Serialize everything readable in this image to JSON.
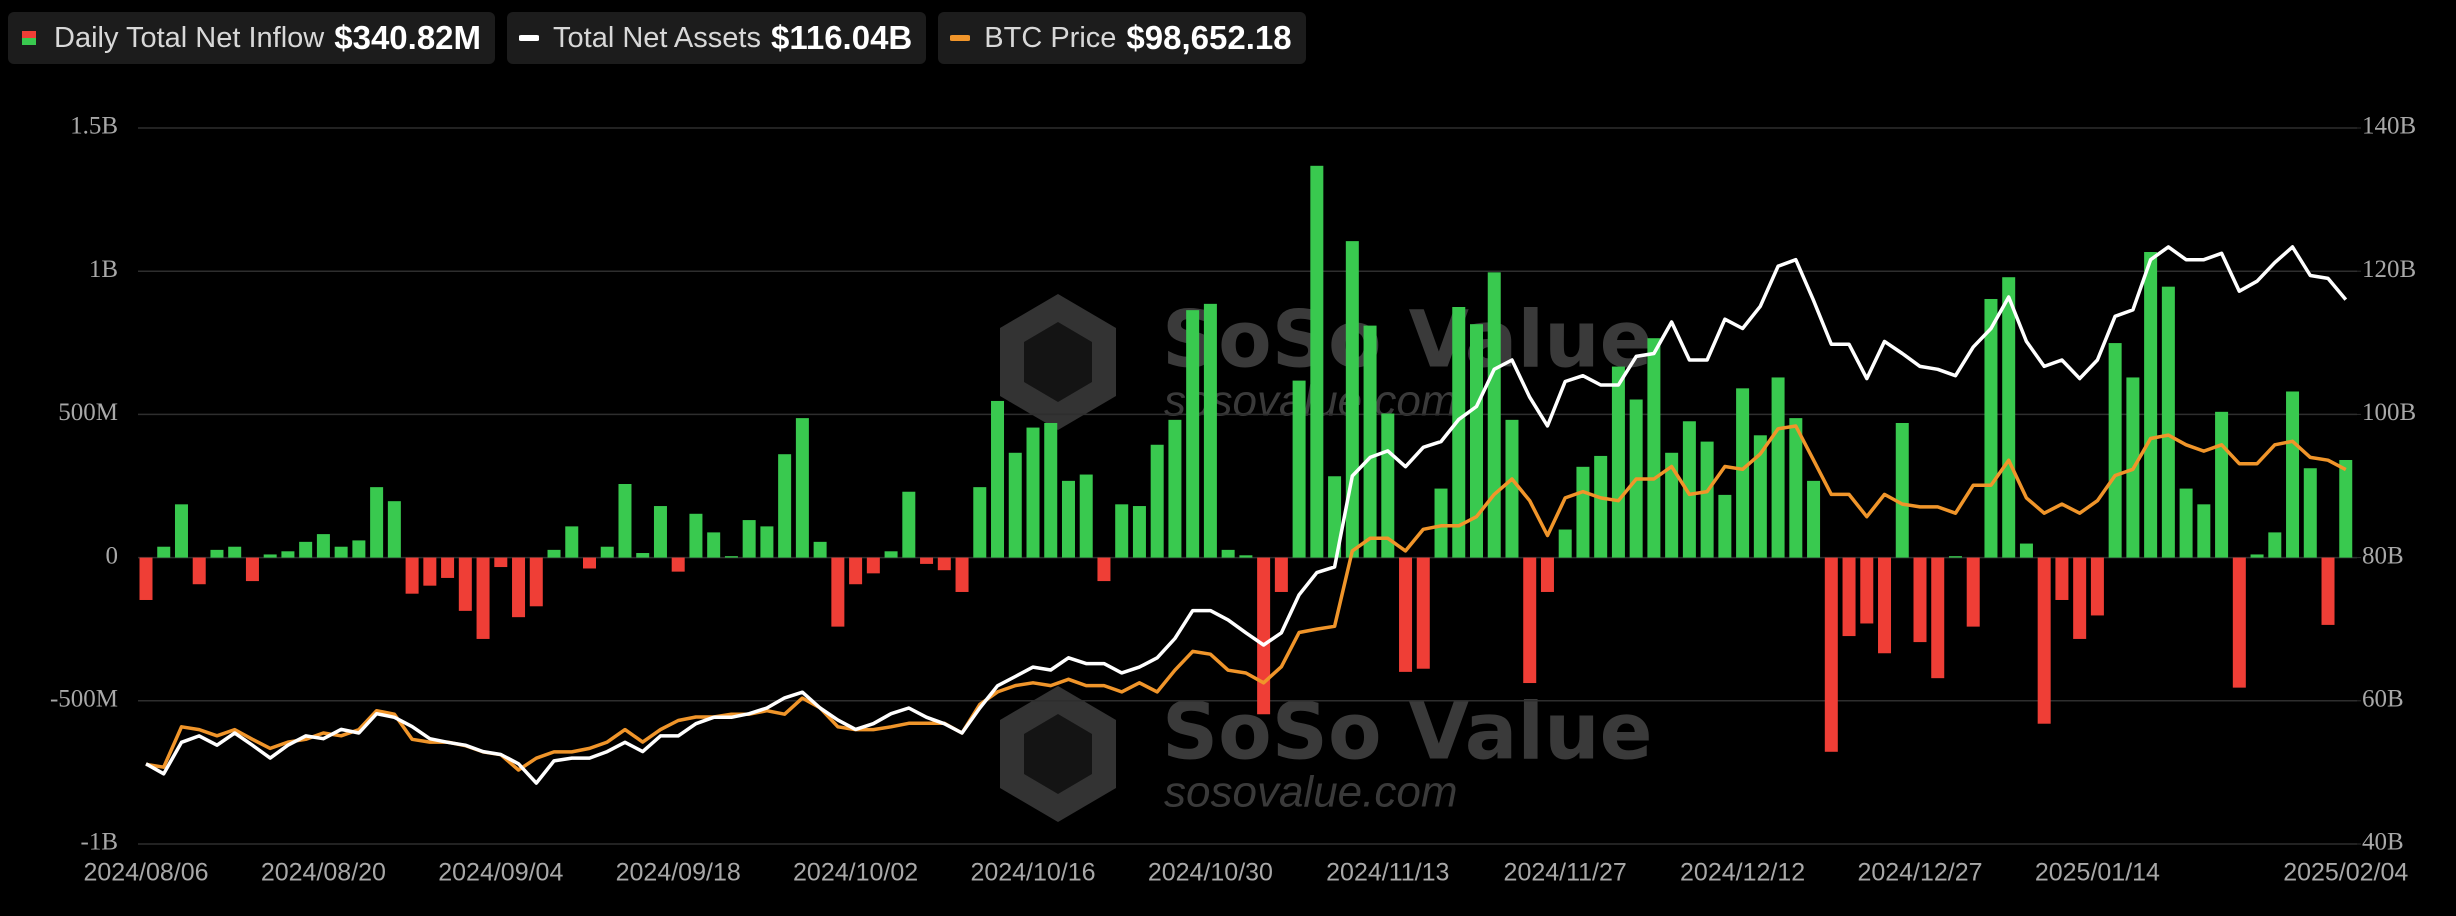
{
  "chart_data": {
    "type": "bar_line",
    "categories": [
      "2024/08/06",
      null,
      null,
      null,
      null,
      null,
      null,
      null,
      null,
      null,
      "2024/08/20",
      null,
      null,
      null,
      null,
      null,
      null,
      null,
      null,
      null,
      "2024/09/04",
      null,
      null,
      null,
      null,
      null,
      null,
      null,
      null,
      null,
      "2024/09/18",
      null,
      null,
      null,
      null,
      null,
      null,
      null,
      null,
      null,
      "2024/10/02",
      null,
      null,
      null,
      null,
      null,
      null,
      null,
      null,
      null,
      "2024/10/16",
      null,
      null,
      null,
      null,
      null,
      null,
      null,
      null,
      null,
      "2024/10/30",
      null,
      null,
      null,
      null,
      null,
      null,
      null,
      null,
      null,
      "2024/11/13",
      null,
      null,
      null,
      null,
      null,
      null,
      null,
      null,
      null,
      "2024/11/27",
      null,
      null,
      null,
      null,
      null,
      null,
      null,
      null,
      null,
      "2024/12/12",
      null,
      null,
      null,
      null,
      null,
      null,
      null,
      null,
      null,
      "2024/12/27",
      null,
      null,
      null,
      null,
      null,
      null,
      null,
      null,
      null,
      "2025/01/14",
      null,
      null,
      null,
      null,
      null,
      null,
      null,
      null,
      null,
      null,
      null,
      null,
      null,
      "2025/02/04"
    ],
    "series": [
      {
        "name": "Daily Total Net Inflow",
        "type": "bar",
        "axis": "y",
        "color": "#39c94f",
        "negative_color": "#ef3e36",
        "latest_label": "$340.82M",
        "values": [
          -148,
          38,
          186,
          -93,
          27,
          38,
          -82,
          11,
          22,
          55,
          82,
          38,
          60,
          246,
          197,
          -126,
          -98,
          -71,
          -186,
          -284,
          -33,
          -208,
          -170,
          27,
          109,
          -38,
          38,
          257,
          16,
          180,
          -49,
          153,
          88,
          5,
          131,
          109,
          361,
          487,
          55,
          -241,
          -93,
          -55,
          22,
          230,
          -22,
          -44,
          -120,
          246,
          547,
          366,
          454,
          470,
          268,
          290,
          -82,
          186,
          180,
          394,
          481,
          864,
          886,
          27,
          8,
          -547,
          -120,
          618,
          1368,
          284,
          1105,
          810,
          503,
          -399,
          -388,
          241,
          875,
          815,
          996,
          481,
          -438,
          -120,
          98,
          317,
          355,
          667,
          552,
          766,
          366,
          476,
          405,
          219,
          591,
          427,
          629,
          487,
          268,
          -678,
          -274,
          -230,
          -334,
          470,
          -295,
          -421,
          5,
          -241,
          903,
          979,
          49,
          -580,
          -148,
          -284,
          -202,
          749,
          629,
          1067,
          946,
          241,
          186,
          509,
          -454,
          11,
          88,
          580,
          312,
          -235,
          340.82
        ]
      },
      {
        "name": "Total Net Assets",
        "type": "line",
        "axis": "y2",
        "color": "#ffffff",
        "latest_label": "$116.04B",
        "values": [
          51.2,
          49.8,
          54.2,
          55.1,
          53.8,
          55.5,
          53.8,
          52.0,
          53.8,
          55.1,
          54.7,
          56.0,
          55.5,
          58.2,
          57.7,
          56.4,
          54.7,
          54.2,
          53.8,
          52.9,
          52.5,
          51.2,
          48.5,
          51.6,
          52.0,
          52.0,
          52.9,
          54.2,
          52.9,
          55.1,
          55.1,
          56.8,
          57.7,
          57.7,
          58.2,
          59.0,
          60.4,
          61.2,
          59.0,
          57.3,
          56.0,
          56.8,
          58.2,
          59.0,
          57.7,
          56.8,
          55.5,
          59.0,
          62.1,
          63.4,
          64.7,
          64.3,
          66.0,
          65.2,
          65.2,
          63.9,
          64.7,
          66.0,
          68.7,
          72.6,
          72.6,
          71.3,
          69.5,
          67.8,
          69.5,
          74.8,
          77.9,
          78.7,
          91.4,
          94.0,
          94.9,
          92.7,
          95.4,
          96.2,
          99.3,
          101.1,
          106.3,
          107.6,
          102.4,
          98.4,
          104.6,
          105.4,
          104.1,
          104.1,
          108.1,
          108.5,
          112.9,
          107.6,
          107.6,
          113.3,
          112.0,
          115.1,
          120.7,
          121.6,
          115.9,
          109.8,
          109.8,
          105.0,
          110.2,
          108.5,
          106.7,
          106.3,
          105.4,
          109.4,
          112.0,
          116.4,
          110.2,
          106.7,
          107.6,
          105.0,
          107.6,
          113.7,
          114.6,
          121.6,
          123.4,
          121.6,
          121.6,
          122.5,
          117.2,
          118.6,
          121.2,
          123.4,
          119.4,
          119.0,
          116.04
        ]
      },
      {
        "name": "BTC Price",
        "type": "line",
        "axis": "y3",
        "color": "#f0952a",
        "latest_label": "$98,652.18",
        "values": [
          56400,
          56000,
          61800,
          61400,
          60500,
          61400,
          60000,
          58700,
          59600,
          60000,
          60900,
          60500,
          61400,
          64100,
          63600,
          60000,
          59600,
          59600,
          59100,
          58200,
          57800,
          55600,
          57300,
          58200,
          58200,
          58700,
          59600,
          61400,
          59600,
          61400,
          62700,
          63200,
          63200,
          63600,
          63600,
          64100,
          63600,
          65900,
          64500,
          61800,
          61400,
          61400,
          61800,
          62300,
          62300,
          62300,
          60900,
          65000,
          66800,
          67700,
          68100,
          67700,
          68600,
          67700,
          67700,
          66800,
          68100,
          66800,
          69900,
          72600,
          72200,
          69900,
          69500,
          68100,
          70400,
          75300,
          75800,
          76200,
          87000,
          88800,
          88800,
          87000,
          90100,
          90600,
          90600,
          91900,
          95100,
          97300,
          94200,
          89200,
          94600,
          95500,
          94600,
          94200,
          97300,
          97300,
          99100,
          95100,
          95500,
          99100,
          98700,
          100900,
          104500,
          104900,
          100000,
          95100,
          95100,
          91900,
          95100,
          93700,
          93300,
          93300,
          92400,
          96400,
          96400,
          100000,
          94600,
          92400,
          93700,
          92400,
          94200,
          97800,
          98700,
          103100,
          103600,
          102200,
          101300,
          102200,
          99500,
          99500,
          102200,
          102700,
          100400,
          100000,
          98652.18
        ]
      }
    ],
    "ylim": [
      -1000,
      1500
    ],
    "yticks": [
      {
        "value": -1000,
        "label": "-1B"
      },
      {
        "value": -500,
        "label": "-500M"
      },
      0,
      {
        "value": 500,
        "label": "500M"
      },
      {
        "value": 1000,
        "label": "1B"
      },
      {
        "value": 1500,
        "label": "1.5B"
      }
    ],
    "y2lim": [
      40,
      140
    ],
    "y2ticks": [
      {
        "value": 40,
        "label": "40B"
      },
      {
        "value": 60,
        "label": "60B"
      },
      {
        "value": 80,
        "label": "80B"
      },
      {
        "value": 100,
        "label": "100B"
      },
      {
        "value": 120,
        "label": "120B"
      },
      {
        "value": 140,
        "label": "140B"
      }
    ],
    "y3lim": [
      45000,
      147600
    ],
    "grid": true,
    "watermark": {
      "brand": "SoSo Value",
      "url": "sosovalue.com"
    }
  }
}
